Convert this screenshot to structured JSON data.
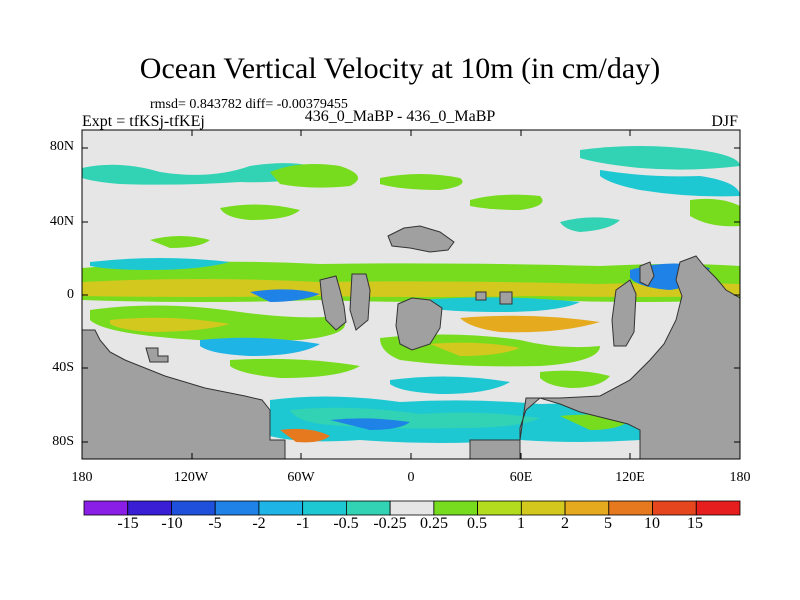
{
  "chart_data": {
    "type": "heatmap",
    "title": "Ocean Vertical Velocity at 10m (in cm/day)",
    "stats_text": "rmsd= 0.843782 diff= -0.00379455",
    "left_label": "Expt = tfKSj-tfKEj",
    "center_label": "436_0_MaBP - 436_0_MaBP",
    "right_label": "DJF",
    "x_ticks": [
      "180",
      "120W",
      "60W",
      "0",
      "60E",
      "120E",
      "180"
    ],
    "y_ticks": [
      "80N",
      "40N",
      "0",
      "40S",
      "80S"
    ],
    "xlim": [
      -180,
      180
    ],
    "ylim": [
      -90,
      90
    ],
    "colorbar": {
      "labels": [
        "-15",
        "-10",
        "-5",
        "-2",
        "-1",
        "-0.5",
        "-0.25",
        "0.25",
        "0.5",
        "1",
        "2",
        "5",
        "10",
        "15"
      ],
      "colors": [
        "#8b1ee6",
        "#3a1ed6",
        "#1e50dc",
        "#1e82e6",
        "#1eb4e6",
        "#1ec8d2",
        "#32d2b4",
        "#e6e6e6",
        "#78dc1e",
        "#b4dc1e",
        "#d2c81e",
        "#e6aa1e",
        "#e6781e",
        "#e6461e",
        "#e61e1e"
      ]
    },
    "land_color": "#a0a0a0",
    "ocean_base_color": "#e6e6e6"
  }
}
